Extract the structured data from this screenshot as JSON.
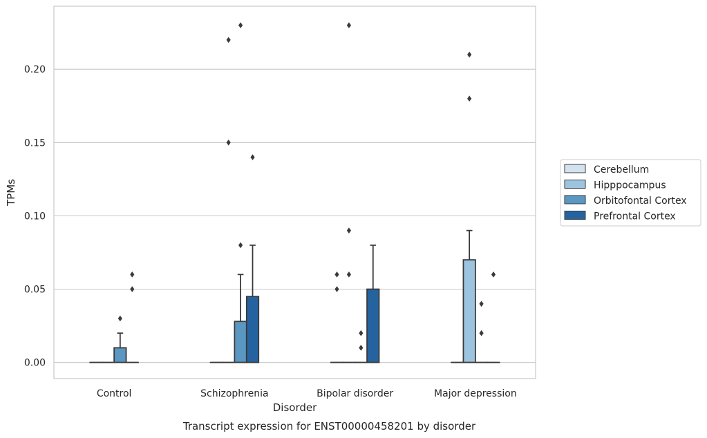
{
  "chart_data": {
    "type": "box",
    "xlabel": "Disorder",
    "ylabel": "TPMs",
    "caption": "Transcript expression for ENST00000458201 by disorder",
    "ylim": [
      -0.011,
      0.243
    ],
    "yticks": [
      "0.00",
      "0.05",
      "0.10",
      "0.15",
      "0.20"
    ],
    "ytick_values": [
      0.0,
      0.05,
      0.1,
      0.15,
      0.2
    ],
    "grid": "horizontal",
    "legend_placement": "right",
    "categories": [
      "Control",
      "Schizophrenia",
      "Bipolar disorder",
      "Major depression"
    ],
    "series": [
      {
        "name": "Cerebellum",
        "color": "#d4e2ef",
        "boxes": [
          {
            "q1": 0,
            "median": 0,
            "q3": 0,
            "whisker_low": 0,
            "whisker_high": 0,
            "outliers": []
          },
          {
            "q1": 0,
            "median": 0,
            "q3": 0,
            "whisker_low": 0,
            "whisker_high": 0,
            "outliers": []
          },
          {
            "q1": 0,
            "median": 0,
            "q3": 0,
            "whisker_low": 0,
            "whisker_high": 0,
            "outliers": [
              0.05,
              0.06
            ]
          },
          {
            "q1": 0,
            "median": 0,
            "q3": 0,
            "whisker_low": 0,
            "whisker_high": 0,
            "outliers": []
          }
        ]
      },
      {
        "name": "Hipppocampus",
        "color": "#9dc4df",
        "boxes": [
          {
            "q1": 0,
            "median": 0,
            "q3": 0,
            "whisker_low": 0,
            "whisker_high": 0,
            "outliers": []
          },
          {
            "q1": 0,
            "median": 0,
            "q3": 0,
            "whisker_low": 0,
            "whisker_high": 0,
            "outliers": [
              0.15,
              0.22
            ]
          },
          {
            "q1": 0,
            "median": 0,
            "q3": 0,
            "whisker_low": 0,
            "whisker_high": 0,
            "outliers": [
              0.06,
              0.09,
              0.23
            ]
          },
          {
            "q1": 0,
            "median": 0,
            "q3": 0.07,
            "whisker_low": 0,
            "whisker_high": 0.09,
            "outliers": [
              0.18,
              0.21
            ]
          }
        ]
      },
      {
        "name": "Orbitofontal Cortex",
        "color": "#5a97c2",
        "boxes": [
          {
            "q1": 0,
            "median": 0,
            "q3": 0.01,
            "whisker_low": 0,
            "whisker_high": 0.02,
            "outliers": [
              0.03
            ]
          },
          {
            "q1": 0,
            "median": 0,
            "q3": 0.028,
            "whisker_low": 0,
            "whisker_high": 0.06,
            "outliers": [
              0.08,
              0.23
            ]
          },
          {
            "q1": 0,
            "median": 0,
            "q3": 0,
            "whisker_low": 0,
            "whisker_high": 0,
            "outliers": [
              0.01,
              0.02
            ]
          },
          {
            "q1": 0,
            "median": 0,
            "q3": 0,
            "whisker_low": 0,
            "whisker_high": 0,
            "outliers": [
              0.02,
              0.04
            ]
          }
        ]
      },
      {
        "name": "Prefrontal Cortex",
        "color": "#2563a0",
        "boxes": [
          {
            "q1": 0,
            "median": 0,
            "q3": 0,
            "whisker_low": 0,
            "whisker_high": 0,
            "outliers": [
              0.05,
              0.06
            ]
          },
          {
            "q1": 0,
            "median": 0,
            "q3": 0.045,
            "whisker_low": 0,
            "whisker_high": 0.08,
            "outliers": [
              0.14
            ]
          },
          {
            "q1": 0,
            "median": 0,
            "q3": 0.05,
            "whisker_low": 0,
            "whisker_high": 0.08,
            "outliers": []
          },
          {
            "q1": 0,
            "median": 0,
            "q3": 0,
            "whisker_low": 0,
            "whisker_high": 0,
            "outliers": [
              0.06
            ]
          }
        ]
      }
    ]
  }
}
